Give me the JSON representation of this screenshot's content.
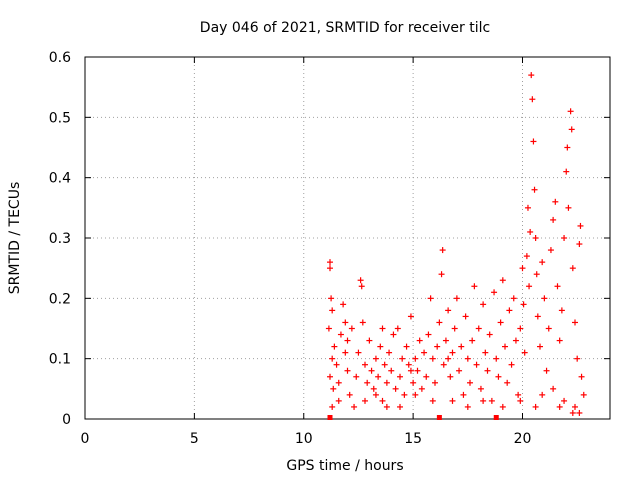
{
  "chart_data": {
    "type": "scatter",
    "title": "Day 046 of 2021, SRMTID for receiver tilc",
    "xlabel": "GPS time / hours",
    "ylabel": "SRMTID / TECUs",
    "xlim": [
      0,
      24
    ],
    "ylim": [
      0,
      0.6
    ],
    "xticks": [
      0,
      5,
      10,
      15,
      20
    ],
    "yticks": [
      0,
      0.1,
      0.2,
      0.3,
      0.4,
      0.5,
      0.6
    ],
    "grid": true,
    "marker": "+",
    "series": [
      {
        "name": "SRMTID",
        "color": "#ff0000",
        "points": [
          [
            11.2,
            0.26
          ],
          [
            11.2,
            0.25
          ],
          [
            11.25,
            0.2
          ],
          [
            11.3,
            0.18
          ],
          [
            11.15,
            0.15
          ],
          [
            11.3,
            0.1
          ],
          [
            11.2,
            0.07
          ],
          [
            11.35,
            0.05
          ],
          [
            11.3,
            0.02
          ],
          [
            11.4,
            0.12
          ],
          [
            11.5,
            0.09
          ],
          [
            11.6,
            0.06
          ],
          [
            11.7,
            0.14
          ],
          [
            11.8,
            0.19
          ],
          [
            11.9,
            0.11
          ],
          [
            12.0,
            0.08
          ],
          [
            12.1,
            0.04
          ],
          [
            12.2,
            0.15
          ],
          [
            12.3,
            0.02
          ],
          [
            12.4,
            0.07
          ],
          [
            12.5,
            0.11
          ],
          [
            12.6,
            0.23
          ],
          [
            12.65,
            0.22
          ],
          [
            12.7,
            0.16
          ],
          [
            12.8,
            0.09
          ],
          [
            12.9,
            0.06
          ],
          [
            13.0,
            0.13
          ],
          [
            13.1,
            0.08
          ],
          [
            13.2,
            0.05
          ],
          [
            13.3,
            0.1
          ],
          [
            13.4,
            0.07
          ],
          [
            13.5,
            0.12
          ],
          [
            13.6,
            0.03
          ],
          [
            13.7,
            0.09
          ],
          [
            13.8,
            0.06
          ],
          [
            13.9,
            0.11
          ],
          [
            14.0,
            0.08
          ],
          [
            14.1,
            0.14
          ],
          [
            14.2,
            0.05
          ],
          [
            14.3,
            0.15
          ],
          [
            14.4,
            0.07
          ],
          [
            14.5,
            0.1
          ],
          [
            14.6,
            0.04
          ],
          [
            14.7,
            0.12
          ],
          [
            14.8,
            0.09
          ],
          [
            14.9,
            0.17
          ],
          [
            15.0,
            0.06
          ],
          [
            15.1,
            0.1
          ],
          [
            15.2,
            0.08
          ],
          [
            15.3,
            0.13
          ],
          [
            15.4,
            0.05
          ],
          [
            15.5,
            0.11
          ],
          [
            15.6,
            0.07
          ],
          [
            15.7,
            0.14
          ],
          [
            15.8,
            0.2
          ],
          [
            15.9,
            0.1
          ],
          [
            16.0,
            0.06
          ],
          [
            16.1,
            0.12
          ],
          [
            16.2,
            0.16
          ],
          [
            16.3,
            0.24
          ],
          [
            16.35,
            0.28
          ],
          [
            16.4,
            0.09
          ],
          [
            16.5,
            0.13
          ],
          [
            16.6,
            0.18
          ],
          [
            16.7,
            0.07
          ],
          [
            16.8,
            0.11
          ],
          [
            16.9,
            0.15
          ],
          [
            17.0,
            0.2
          ],
          [
            17.1,
            0.08
          ],
          [
            17.2,
            0.12
          ],
          [
            17.3,
            0.04
          ],
          [
            17.4,
            0.17
          ],
          [
            17.5,
            0.1
          ],
          [
            17.6,
            0.06
          ],
          [
            17.7,
            0.13
          ],
          [
            17.8,
            0.22
          ],
          [
            17.9,
            0.09
          ],
          [
            18.0,
            0.15
          ],
          [
            18.1,
            0.05
          ],
          [
            18.2,
            0.19
          ],
          [
            18.3,
            0.11
          ],
          [
            18.4,
            0.08
          ],
          [
            18.5,
            0.14
          ],
          [
            18.6,
            0.03
          ],
          [
            18.7,
            0.21
          ],
          [
            18.8,
            0.1
          ],
          [
            18.9,
            0.07
          ],
          [
            19.0,
            0.16
          ],
          [
            19.1,
            0.23
          ],
          [
            19.2,
            0.12
          ],
          [
            19.3,
            0.06
          ],
          [
            19.4,
            0.18
          ],
          [
            19.5,
            0.09
          ],
          [
            19.6,
            0.2
          ],
          [
            19.7,
            0.13
          ],
          [
            19.8,
            0.04
          ],
          [
            19.9,
            0.15
          ],
          [
            20.0,
            0.25
          ],
          [
            20.05,
            0.19
          ],
          [
            20.1,
            0.11
          ],
          [
            20.2,
            0.27
          ],
          [
            20.25,
            0.35
          ],
          [
            20.3,
            0.22
          ],
          [
            20.35,
            0.31
          ],
          [
            20.4,
            0.57
          ],
          [
            20.45,
            0.53
          ],
          [
            20.5,
            0.46
          ],
          [
            20.55,
            0.38
          ],
          [
            20.6,
            0.3
          ],
          [
            20.65,
            0.24
          ],
          [
            20.7,
            0.17
          ],
          [
            20.8,
            0.12
          ],
          [
            20.9,
            0.26
          ],
          [
            21.0,
            0.2
          ],
          [
            21.1,
            0.08
          ],
          [
            21.2,
            0.15
          ],
          [
            21.3,
            0.28
          ],
          [
            21.4,
            0.33
          ],
          [
            21.5,
            0.36
          ],
          [
            21.6,
            0.22
          ],
          [
            21.7,
            0.13
          ],
          [
            21.8,
            0.18
          ],
          [
            21.9,
            0.3
          ],
          [
            22.0,
            0.41
          ],
          [
            22.05,
            0.45
          ],
          [
            22.1,
            0.35
          ],
          [
            22.2,
            0.51
          ],
          [
            22.25,
            0.48
          ],
          [
            22.3,
            0.25
          ],
          [
            22.4,
            0.16
          ],
          [
            22.5,
            0.1
          ],
          [
            22.6,
            0.29
          ],
          [
            22.65,
            0.32
          ],
          [
            22.7,
            0.07
          ],
          [
            22.8,
            0.04
          ],
          [
            22.6,
            0.01
          ],
          [
            22.4,
            0.02
          ],
          [
            21.9,
            0.03
          ],
          [
            21.4,
            0.05
          ],
          [
            20.9,
            0.04
          ],
          [
            11.6,
            0.03
          ],
          [
            12.0,
            0.13
          ],
          [
            12.8,
            0.03
          ],
          [
            13.3,
            0.04
          ],
          [
            13.8,
            0.02
          ],
          [
            14.4,
            0.02
          ],
          [
            15.1,
            0.04
          ],
          [
            15.9,
            0.03
          ],
          [
            16.8,
            0.03
          ],
          [
            17.5,
            0.02
          ],
          [
            18.2,
            0.03
          ],
          [
            19.1,
            0.02
          ],
          [
            19.9,
            0.03
          ],
          [
            20.6,
            0.02
          ],
          [
            21.7,
            0.02
          ],
          [
            22.3,
            0.01
          ],
          [
            11.9,
            0.16
          ],
          [
            13.6,
            0.15
          ],
          [
            14.9,
            0.08
          ],
          [
            16.6,
            0.1
          ]
        ]
      }
    ],
    "baseline_markers": [
      11.2,
      16.2,
      18.8
    ]
  }
}
